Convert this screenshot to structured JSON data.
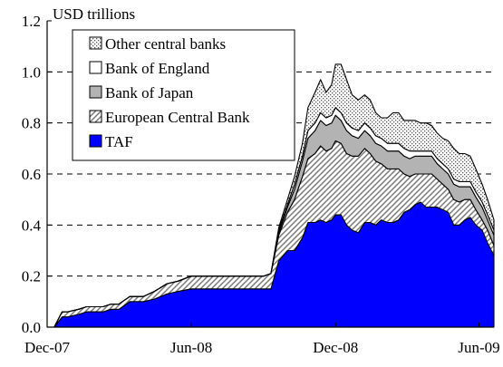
{
  "chart_data": {
    "type": "area",
    "stacked": true,
    "ylabel": "USD trillions",
    "ylim": [
      0,
      1.2
    ],
    "yticks": [
      0.0,
      0.2,
      0.4,
      0.6,
      0.8,
      1.0,
      1.2
    ],
    "ytick_labels": [
      "0.0",
      "0.2",
      "0.4",
      "0.6",
      "0.8",
      "1.0",
      "1.2"
    ],
    "gridlines_at": [
      0.2,
      0.4,
      0.6,
      0.8,
      1.0
    ],
    "grid_style": "dashed",
    "xlim": [
      "2007-12-01",
      "2009-06-20"
    ],
    "xticks": [
      "2007-12-01",
      "2008-06-01",
      "2008-12-01",
      "2009-06-01"
    ],
    "xtick_labels": [
      "Dec-07",
      "Jun-08",
      "Dec-08",
      "Jun-09"
    ],
    "legend_position": "top-left",
    "x": [
      "2007-12-01",
      "2007-12-10",
      "2007-12-20",
      "2007-12-27",
      "2008-01-10",
      "2008-01-20",
      "2008-01-31",
      "2008-02-10",
      "2008-02-20",
      "2008-03-01",
      "2008-03-15",
      "2008-04-01",
      "2008-04-15",
      "2008-05-01",
      "2008-05-15",
      "2008-06-01",
      "2008-06-15",
      "2008-07-01",
      "2008-07-15",
      "2008-08-01",
      "2008-08-15",
      "2008-09-01",
      "2008-09-10",
      "2008-09-20",
      "2008-10-01",
      "2008-10-10",
      "2008-10-20",
      "2008-10-27",
      "2008-11-05",
      "2008-11-12",
      "2008-11-19",
      "2008-11-26",
      "2008-12-01",
      "2008-12-08",
      "2008-12-15",
      "2008-12-22",
      "2008-12-30",
      "2009-01-07",
      "2009-01-14",
      "2009-01-21",
      "2009-01-28",
      "2009-02-05",
      "2009-02-12",
      "2009-02-19",
      "2009-02-26",
      "2009-03-05",
      "2009-03-12",
      "2009-03-19",
      "2009-03-26",
      "2009-04-02",
      "2009-04-09",
      "2009-04-16",
      "2009-04-23",
      "2009-04-30",
      "2009-05-07",
      "2009-05-14",
      "2009-05-21",
      "2009-05-28",
      "2009-06-05",
      "2009-06-12",
      "2009-06-20"
    ],
    "series": [
      {
        "name": "TAF",
        "color": "#0000ff",
        "pattern": "solid",
        "values": [
          0,
          0,
          0.04,
          0.04,
          0.05,
          0.06,
          0.06,
          0.06,
          0.07,
          0.07,
          0.1,
          0.1,
          0.11,
          0.13,
          0.14,
          0.15,
          0.15,
          0.15,
          0.15,
          0.15,
          0.15,
          0.15,
          0.15,
          0.26,
          0.3,
          0.3,
          0.35,
          0.41,
          0.41,
          0.42,
          0.41,
          0.42,
          0.44,
          0.44,
          0.4,
          0.38,
          0.37,
          0.41,
          0.41,
          0.4,
          0.42,
          0.41,
          0.41,
          0.42,
          0.45,
          0.46,
          0.48,
          0.49,
          0.47,
          0.47,
          0.47,
          0.46,
          0.45,
          0.4,
          0.4,
          0.42,
          0.43,
          0.4,
          0.38,
          0.33,
          0.28
        ]
      },
      {
        "name": "European Central Bank",
        "color": "#999999",
        "pattern": "diagonal",
        "values": [
          0,
          0,
          0.02,
          0.02,
          0.02,
          0.02,
          0.02,
          0.02,
          0.02,
          0.02,
          0.02,
          0.02,
          0.03,
          0.04,
          0.04,
          0.05,
          0.05,
          0.05,
          0.05,
          0.05,
          0.05,
          0.05,
          0.06,
          0.1,
          0.15,
          0.2,
          0.24,
          0.25,
          0.27,
          0.29,
          0.28,
          0.28,
          0.29,
          0.28,
          0.28,
          0.29,
          0.3,
          0.29,
          0.27,
          0.25,
          0.22,
          0.21,
          0.21,
          0.2,
          0.15,
          0.13,
          0.12,
          0.11,
          0.13,
          0.13,
          0.11,
          0.1,
          0.09,
          0.1,
          0.09,
          0.08,
          0.07,
          0.06,
          0.04,
          0.05,
          0.04
        ]
      },
      {
        "name": "Bank of Japan",
        "color": "#b3b3b3",
        "pattern": "solid",
        "values": [
          0,
          0,
          0,
          0,
          0,
          0,
          0,
          0,
          0,
          0,
          0,
          0,
          0,
          0,
          0,
          0,
          0,
          0,
          0,
          0,
          0,
          0,
          0,
          0.01,
          0.02,
          0.04,
          0.06,
          0.08,
          0.09,
          0.1,
          0.1,
          0.1,
          0.1,
          0.09,
          0.09,
          0.08,
          0.07,
          0.07,
          0.07,
          0.07,
          0.07,
          0.07,
          0.07,
          0.07,
          0.07,
          0.07,
          0.07,
          0.07,
          0.07,
          0.07,
          0.06,
          0.06,
          0.06,
          0.06,
          0.06,
          0.05,
          0.05,
          0.05,
          0.05,
          0.04,
          0.04
        ]
      },
      {
        "name": "Bank of England",
        "color": "#ffffff",
        "pattern": "solid",
        "values": [
          0,
          0,
          0,
          0,
          0,
          0,
          0,
          0,
          0,
          0,
          0,
          0,
          0,
          0,
          0,
          0,
          0,
          0,
          0,
          0,
          0,
          0,
          0,
          0.01,
          0.01,
          0.02,
          0.02,
          0.03,
          0.03,
          0.03,
          0.03,
          0.03,
          0.03,
          0.03,
          0.03,
          0.03,
          0.03,
          0.03,
          0.03,
          0.03,
          0.03,
          0.03,
          0.03,
          0.03,
          0.03,
          0.03,
          0.02,
          0.02,
          0.02,
          0.02,
          0.02,
          0.02,
          0.02,
          0.02,
          0.02,
          0.02,
          0.02,
          0.02,
          0.02,
          0.02,
          0.02
        ]
      },
      {
        "name": "Other central banks",
        "color": "#e6e6e6",
        "pattern": "dots",
        "values": [
          0,
          0,
          0,
          0,
          0,
          0,
          0,
          0,
          0,
          0,
          0,
          0,
          0,
          0,
          0,
          0,
          0,
          0,
          0,
          0,
          0,
          0,
          0,
          0.01,
          0.02,
          0.03,
          0.05,
          0.09,
          0.12,
          0.13,
          0.1,
          0.12,
          0.17,
          0.19,
          0.17,
          0.13,
          0.12,
          0.11,
          0.11,
          0.09,
          0.08,
          0.1,
          0.12,
          0.12,
          0.11,
          0.12,
          0.12,
          0.11,
          0.11,
          0.1,
          0.1,
          0.1,
          0.11,
          0.12,
          0.11,
          0.11,
          0.1,
          0.09,
          0.07,
          0.06,
          0.04
        ]
      }
    ],
    "legend": [
      {
        "label": "Other central banks",
        "pattern": "dots"
      },
      {
        "label": "Bank of England",
        "pattern": "white"
      },
      {
        "label": "Bank of Japan",
        "pattern": "gray"
      },
      {
        "label": "European Central Bank",
        "pattern": "diagonal"
      },
      {
        "label": "TAF",
        "pattern": "blue"
      }
    ]
  }
}
